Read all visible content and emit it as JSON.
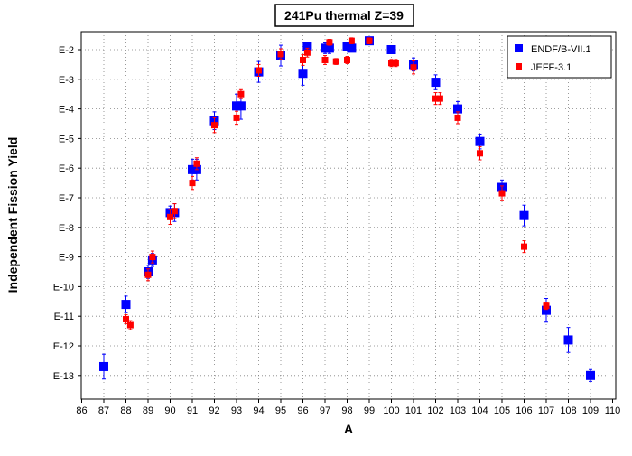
{
  "chart_data": {
    "type": "scatter",
    "title": "241Pu thermal Z=39",
    "xlabel": "A",
    "ylabel": "Independent Fission Yield",
    "xlim": [
      86,
      110
    ],
    "x_ticks": [
      86,
      87,
      88,
      89,
      90,
      91,
      92,
      93,
      94,
      95,
      96,
      97,
      98,
      99,
      100,
      101,
      102,
      103,
      104,
      105,
      106,
      107,
      108,
      109,
      110
    ],
    "y_scale": "log",
    "ylim_exponent": [
      -13.5,
      -1.8
    ],
    "y_ticks": [
      {
        "exp": -2,
        "label": "E-2"
      },
      {
        "exp": -3,
        "label": "E-3"
      },
      {
        "exp": -4,
        "label": "E-4"
      },
      {
        "exp": -5,
        "label": "E-5"
      },
      {
        "exp": -6,
        "label": "E-6"
      },
      {
        "exp": -7,
        "label": "E-7"
      },
      {
        "exp": -8,
        "label": "E-8"
      },
      {
        "exp": -9,
        "label": "E-9"
      },
      {
        "exp": -10,
        "label": "E-10"
      },
      {
        "exp": -11,
        "label": "E-11"
      },
      {
        "exp": -12,
        "label": "E-12"
      },
      {
        "exp": -13,
        "label": "E-13"
      }
    ],
    "grid": true,
    "legend_position": "top-right",
    "series": [
      {
        "name": "ENDF/B-VII.1",
        "color": "#0000ff",
        "marker": "square-large",
        "points": [
          {
            "x": 87.0,
            "exp": -12.7,
            "err": 0.42
          },
          {
            "x": 88.0,
            "exp": -10.6,
            "err": 0.28
          },
          {
            "x": 89.0,
            "exp": -9.5,
            "err": 0.22
          },
          {
            "x": 89.2,
            "exp": -9.1,
            "err": 0.22
          },
          {
            "x": 90.0,
            "exp": -7.5,
            "err": 0.22
          },
          {
            "x": 90.2,
            "exp": -7.5,
            "err": 0.3
          },
          {
            "x": 91.0,
            "exp": -6.05,
            "err": 0.35
          },
          {
            "x": 91.2,
            "exp": -6.05,
            "err": 0.35
          },
          {
            "x": 92.0,
            "exp": -4.4,
            "err": 0.3
          },
          {
            "x": 93.0,
            "exp": -3.9,
            "err": 0.4
          },
          {
            "x": 93.2,
            "exp": -3.9,
            "err": 0.45
          },
          {
            "x": 94.0,
            "exp": -2.75,
            "err": 0.35
          },
          {
            "x": 95.0,
            "exp": -2.2,
            "err": 0.35
          },
          {
            "x": 96.0,
            "exp": -2.8,
            "err": 0.4
          },
          {
            "x": 96.2,
            "exp": -1.9,
            "err": 0.1
          },
          {
            "x": 97.0,
            "exp": -1.95,
            "err": 0.18
          },
          {
            "x": 97.2,
            "exp": -1.95,
            "err": 0.18
          },
          {
            "x": 98.0,
            "exp": -1.9,
            "err": 0.1
          },
          {
            "x": 98.2,
            "exp": -1.95,
            "err": 0.12
          },
          {
            "x": 99.0,
            "exp": -1.7,
            "err": 0.1
          },
          {
            "x": 100.0,
            "exp": -2.0,
            "err": 0.12
          },
          {
            "x": 101.0,
            "exp": -2.5,
            "err": 0.22
          },
          {
            "x": 102.0,
            "exp": -3.1,
            "err": 0.25
          },
          {
            "x": 103.0,
            "exp": -4.0,
            "err": 0.25
          },
          {
            "x": 104.0,
            "exp": -5.1,
            "err": 0.25
          },
          {
            "x": 105.0,
            "exp": -6.65,
            "err": 0.25
          },
          {
            "x": 106.0,
            "exp": -7.6,
            "err": 0.35
          },
          {
            "x": 107.0,
            "exp": -10.8,
            "err": 0.4
          },
          {
            "x": 108.0,
            "exp": -11.8,
            "err": 0.42
          },
          {
            "x": 109.0,
            "exp": -13.0,
            "err": 0.2
          }
        ]
      },
      {
        "name": "JEFF-3.1",
        "color": "#ff0000",
        "marker": "square-small",
        "points": [
          {
            "x": 88.0,
            "exp": -11.1,
            "err": 0.15
          },
          {
            "x": 88.2,
            "exp": -11.3,
            "err": 0.15
          },
          {
            "x": 89.0,
            "exp": -9.6,
            "err": 0.2
          },
          {
            "x": 89.2,
            "exp": -9.0,
            "err": 0.2
          },
          {
            "x": 90.0,
            "exp": -7.65,
            "err": 0.25
          },
          {
            "x": 90.2,
            "exp": -7.45,
            "err": 0.25
          },
          {
            "x": 91.0,
            "exp": -6.5,
            "err": 0.22
          },
          {
            "x": 91.2,
            "exp": -5.85,
            "err": 0.2
          },
          {
            "x": 92.0,
            "exp": -4.55,
            "err": 0.25
          },
          {
            "x": 93.0,
            "exp": -4.3,
            "err": 0.22
          },
          {
            "x": 93.2,
            "exp": -3.5,
            "err": 0.15
          },
          {
            "x": 94.0,
            "exp": -2.7,
            "err": 0.2
          },
          {
            "x": 95.0,
            "exp": -2.15,
            "err": 0.18
          },
          {
            "x": 96.0,
            "exp": -2.35,
            "err": 0.18
          },
          {
            "x": 96.2,
            "exp": -2.1,
            "err": 0.15
          },
          {
            "x": 97.0,
            "exp": -2.35,
            "err": 0.15
          },
          {
            "x": 97.2,
            "exp": -1.75,
            "err": 0.1
          },
          {
            "x": 97.5,
            "exp": -2.4,
            "err": 0.1
          },
          {
            "x": 98.0,
            "exp": -2.35,
            "err": 0.12
          },
          {
            "x": 98.2,
            "exp": -1.7,
            "err": 0.1
          },
          {
            "x": 99.0,
            "exp": -1.7,
            "err": 0.1
          },
          {
            "x": 100.0,
            "exp": -2.45,
            "err": 0.12
          },
          {
            "x": 100.2,
            "exp": -2.45,
            "err": 0.12
          },
          {
            "x": 101.0,
            "exp": -2.6,
            "err": 0.22
          },
          {
            "x": 102.0,
            "exp": -3.65,
            "err": 0.2
          },
          {
            "x": 102.2,
            "exp": -3.65,
            "err": 0.2
          },
          {
            "x": 103.0,
            "exp": -4.3,
            "err": 0.2
          },
          {
            "x": 104.0,
            "exp": -5.5,
            "err": 0.22
          },
          {
            "x": 105.0,
            "exp": -6.85,
            "err": 0.25
          },
          {
            "x": 106.0,
            "exp": -8.65,
            "err": 0.2
          },
          {
            "x": 107.0,
            "exp": -10.65,
            "err": 0.12
          }
        ]
      }
    ]
  }
}
